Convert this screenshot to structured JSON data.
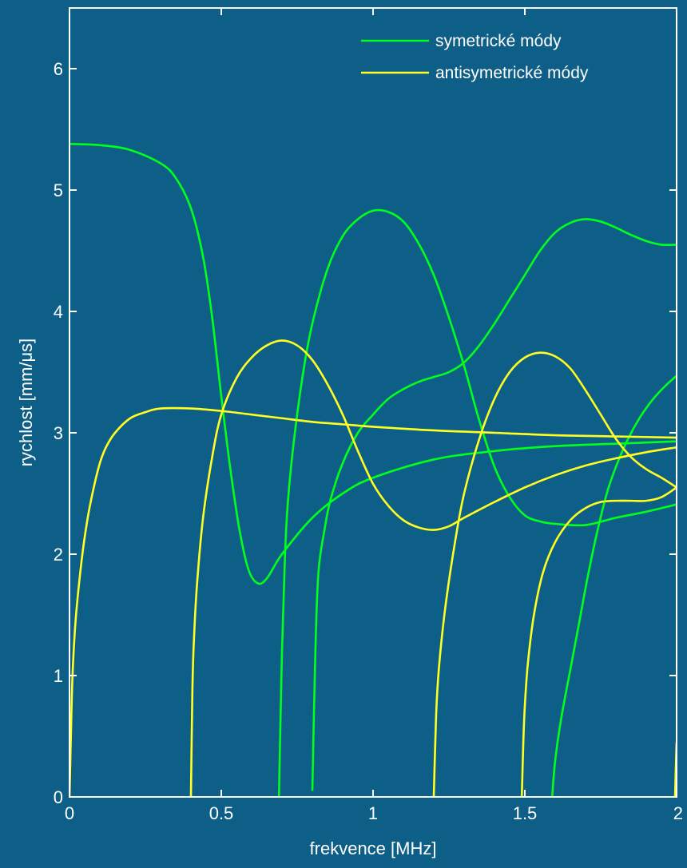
{
  "colors": {
    "background": "#0e5f87",
    "axes": "#ffffff",
    "symmetric": "#00ff1a",
    "antisymmetric": "#ffff22"
  },
  "chart_data": {
    "type": "line",
    "xlabel": "frekvence [MHz]",
    "ylabel": "rychlost [mm/μs]",
    "xlim": [
      0,
      2
    ],
    "ylim": [
      0,
      6.5
    ],
    "xticks": [
      0,
      0.5,
      1,
      1.5,
      2
    ],
    "xtick_labels": [
      "0",
      "0.5",
      "1",
      "1.5",
      "2"
    ],
    "yticks": [
      0,
      1,
      2,
      3,
      4,
      5,
      6
    ],
    "ytick_labels": [
      "0",
      "1",
      "2",
      "3",
      "4",
      "5",
      "6"
    ],
    "grid": false,
    "legend": {
      "position": "top-right",
      "entries": [
        {
          "label": "symetrické módy",
          "color": "#00ff1a"
        },
        {
          "label": "antisymetrické módy",
          "color": "#ffff22"
        }
      ]
    },
    "series": [
      {
        "group": "symetrické módy",
        "color": "#00ff1a",
        "points": [
          [
            0,
            5.38
          ],
          [
            0.1,
            5.37
          ],
          [
            0.2,
            5.33
          ],
          [
            0.3,
            5.22
          ],
          [
            0.35,
            5.1
          ],
          [
            0.4,
            4.85
          ],
          [
            0.44,
            4.45
          ],
          [
            0.47,
            3.95
          ],
          [
            0.5,
            3.3
          ],
          [
            0.53,
            2.7
          ],
          [
            0.56,
            2.2
          ],
          [
            0.59,
            1.87
          ],
          [
            0.62,
            1.76
          ],
          [
            0.65,
            1.8
          ],
          [
            0.7,
            2.0
          ],
          [
            0.8,
            2.3
          ],
          [
            0.9,
            2.5
          ],
          [
            1.0,
            2.63
          ],
          [
            1.2,
            2.78
          ],
          [
            1.4,
            2.85
          ],
          [
            1.6,
            2.89
          ],
          [
            1.8,
            2.91
          ],
          [
            2.0,
            2.93
          ]
        ]
      },
      {
        "group": "symetrické módy",
        "color": "#00ff1a",
        "points": [
          [
            0.69,
            0.0
          ],
          [
            0.7,
            1.2
          ],
          [
            0.71,
            2.0
          ],
          [
            0.72,
            2.45
          ],
          [
            0.74,
            2.95
          ],
          [
            0.77,
            3.5
          ],
          [
            0.8,
            3.9
          ],
          [
            0.85,
            4.35
          ],
          [
            0.9,
            4.62
          ],
          [
            0.95,
            4.76
          ],
          [
            1.0,
            4.83
          ],
          [
            1.05,
            4.82
          ],
          [
            1.1,
            4.74
          ],
          [
            1.15,
            4.56
          ],
          [
            1.2,
            4.3
          ],
          [
            1.25,
            3.95
          ],
          [
            1.3,
            3.55
          ],
          [
            1.35,
            3.1
          ],
          [
            1.4,
            2.72
          ],
          [
            1.45,
            2.47
          ],
          [
            1.5,
            2.32
          ],
          [
            1.55,
            2.27
          ],
          [
            1.6,
            2.25
          ],
          [
            1.7,
            2.24
          ],
          [
            1.8,
            2.3
          ],
          [
            1.9,
            2.35
          ],
          [
            2.0,
            2.41
          ]
        ]
      },
      {
        "group": "symetrické módy",
        "color": "#00ff1a",
        "points": [
          [
            0.8,
            0.05
          ],
          [
            0.81,
            1.2
          ],
          [
            0.82,
            1.85
          ],
          [
            0.84,
            2.2
          ],
          [
            0.86,
            2.45
          ],
          [
            0.9,
            2.75
          ],
          [
            0.95,
            3.0
          ],
          [
            1.0,
            3.15
          ],
          [
            1.05,
            3.28
          ],
          [
            1.1,
            3.36
          ],
          [
            1.15,
            3.42
          ],
          [
            1.2,
            3.46
          ],
          [
            1.25,
            3.5
          ],
          [
            1.3,
            3.58
          ],
          [
            1.35,
            3.72
          ],
          [
            1.4,
            3.9
          ],
          [
            1.45,
            4.1
          ],
          [
            1.5,
            4.3
          ],
          [
            1.55,
            4.5
          ],
          [
            1.6,
            4.65
          ],
          [
            1.65,
            4.73
          ],
          [
            1.7,
            4.76
          ],
          [
            1.75,
            4.74
          ],
          [
            1.8,
            4.69
          ],
          [
            1.85,
            4.63
          ],
          [
            1.9,
            4.58
          ],
          [
            1.95,
            4.55
          ],
          [
            2.0,
            4.55
          ]
        ]
      },
      {
        "group": "symetrické módy",
        "color": "#00ff1a",
        "points": [
          [
            1.59,
            0.0
          ],
          [
            1.6,
            0.3
          ],
          [
            1.62,
            0.65
          ],
          [
            1.65,
            1.05
          ],
          [
            1.68,
            1.45
          ],
          [
            1.71,
            1.85
          ],
          [
            1.74,
            2.2
          ],
          [
            1.77,
            2.5
          ],
          [
            1.8,
            2.72
          ],
          [
            1.84,
            2.95
          ],
          [
            1.88,
            3.13
          ],
          [
            1.92,
            3.27
          ],
          [
            1.96,
            3.38
          ],
          [
            2.0,
            3.47
          ]
        ]
      },
      {
        "group": "antisymetrické módy",
        "color": "#ffff22",
        "points": [
          [
            0,
            0.0
          ],
          [
            0.005,
            0.55
          ],
          [
            0.01,
            1.0
          ],
          [
            0.02,
            1.45
          ],
          [
            0.04,
            1.95
          ],
          [
            0.06,
            2.3
          ],
          [
            0.08,
            2.55
          ],
          [
            0.1,
            2.75
          ],
          [
            0.12,
            2.88
          ],
          [
            0.15,
            3.0
          ],
          [
            0.2,
            3.12
          ],
          [
            0.25,
            3.17
          ],
          [
            0.3,
            3.2
          ],
          [
            0.4,
            3.2
          ],
          [
            0.5,
            3.18
          ],
          [
            0.6,
            3.15
          ],
          [
            0.7,
            3.12
          ],
          [
            0.8,
            3.09
          ],
          [
            0.9,
            3.07
          ],
          [
            1.0,
            3.05
          ],
          [
            1.2,
            3.02
          ],
          [
            1.4,
            3.0
          ],
          [
            1.6,
            2.98
          ],
          [
            1.8,
            2.97
          ],
          [
            2.0,
            2.96
          ]
        ]
      },
      {
        "group": "antisymetrické módy",
        "color": "#ffff22",
        "points": [
          [
            0.4,
            0.0
          ],
          [
            0.405,
            0.9
          ],
          [
            0.41,
            1.3
          ],
          [
            0.42,
            1.75
          ],
          [
            0.44,
            2.3
          ],
          [
            0.47,
            2.8
          ],
          [
            0.5,
            3.15
          ],
          [
            0.55,
            3.45
          ],
          [
            0.6,
            3.62
          ],
          [
            0.65,
            3.72
          ],
          [
            0.7,
            3.76
          ],
          [
            0.75,
            3.72
          ],
          [
            0.8,
            3.6
          ],
          [
            0.85,
            3.4
          ],
          [
            0.9,
            3.15
          ],
          [
            0.95,
            2.85
          ],
          [
            1.0,
            2.58
          ],
          [
            1.05,
            2.4
          ],
          [
            1.1,
            2.28
          ],
          [
            1.15,
            2.22
          ],
          [
            1.2,
            2.2
          ],
          [
            1.25,
            2.23
          ],
          [
            1.3,
            2.3
          ],
          [
            1.4,
            2.43
          ],
          [
            1.5,
            2.55
          ],
          [
            1.6,
            2.65
          ],
          [
            1.7,
            2.73
          ],
          [
            1.8,
            2.79
          ],
          [
            1.9,
            2.84
          ],
          [
            2.0,
            2.88
          ]
        ]
      },
      {
        "group": "antisymetrické módy",
        "color": "#ffff22",
        "points": [
          [
            1.2,
            0.0
          ],
          [
            1.205,
            0.45
          ],
          [
            1.21,
            0.8
          ],
          [
            1.22,
            1.15
          ],
          [
            1.24,
            1.6
          ],
          [
            1.27,
            2.1
          ],
          [
            1.3,
            2.5
          ],
          [
            1.35,
            2.95
          ],
          [
            1.4,
            3.28
          ],
          [
            1.45,
            3.5
          ],
          [
            1.5,
            3.62
          ],
          [
            1.55,
            3.66
          ],
          [
            1.6,
            3.63
          ],
          [
            1.65,
            3.53
          ],
          [
            1.7,
            3.35
          ],
          [
            1.75,
            3.15
          ],
          [
            1.8,
            2.95
          ],
          [
            1.85,
            2.8
          ],
          [
            1.9,
            2.7
          ],
          [
            1.95,
            2.63
          ],
          [
            2.0,
            2.55
          ]
        ]
      },
      {
        "group": "antisymetrické módy",
        "color": "#ffff22",
        "points": [
          [
            1.49,
            0.0
          ],
          [
            1.495,
            0.45
          ],
          [
            1.5,
            0.75
          ],
          [
            1.51,
            1.1
          ],
          [
            1.53,
            1.5
          ],
          [
            1.56,
            1.85
          ],
          [
            1.6,
            2.1
          ],
          [
            1.65,
            2.28
          ],
          [
            1.7,
            2.38
          ],
          [
            1.75,
            2.43
          ],
          [
            1.8,
            2.44
          ],
          [
            1.85,
            2.44
          ],
          [
            1.9,
            2.44
          ],
          [
            1.95,
            2.47
          ],
          [
            2.0,
            2.55
          ]
        ]
      },
      {
        "group": "antisymetrické módy",
        "color": "#ffff22",
        "points": [
          [
            1.995,
            0.0
          ],
          [
            1.997,
            0.2
          ],
          [
            2.0,
            0.45
          ]
        ]
      }
    ]
  }
}
